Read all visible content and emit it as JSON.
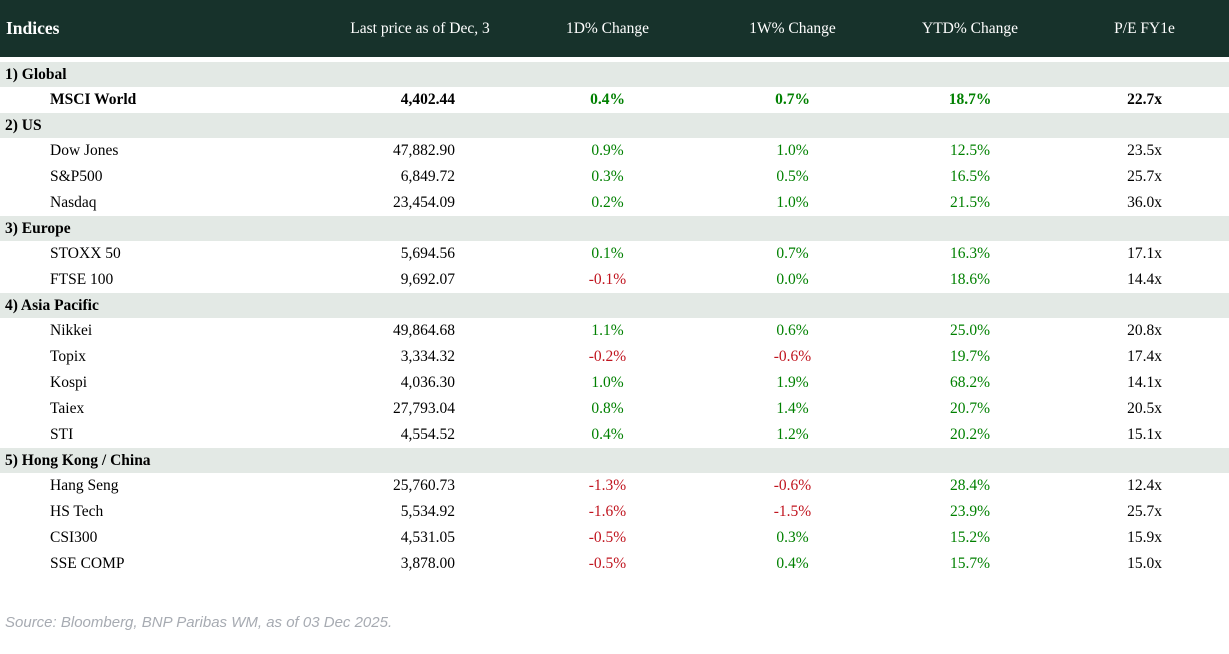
{
  "colors": {
    "header_bg": "#17322b",
    "header_text": "#ffffff",
    "section_bg": "#e3e9e5",
    "positive": "#008000",
    "negative": "#c0141e",
    "text": "#000000",
    "source_text": "#a7abb2"
  },
  "chart_data": {
    "type": "table",
    "title": "Indices",
    "columns": [
      "Indices",
      "Last price as of Dec, 3",
      "1D% Change",
      "1W% Change",
      "YTD% Change",
      "P/E FY1e"
    ],
    "sections": [
      {
        "label": "1) Global",
        "rows": [
          {
            "name": "MSCI World",
            "last_price": "4,402.44",
            "chg_1d": "0.4%",
            "chg_1w": "0.7%",
            "chg_ytd": "18.7%",
            "pe_fy1e": "22.7x",
            "bold": true
          }
        ]
      },
      {
        "label": "2) US",
        "rows": [
          {
            "name": "Dow Jones",
            "last_price": "47,882.90",
            "chg_1d": "0.9%",
            "chg_1w": "1.0%",
            "chg_ytd": "12.5%",
            "pe_fy1e": "23.5x"
          },
          {
            "name": "S&P500",
            "last_price": "6,849.72",
            "chg_1d": "0.3%",
            "chg_1w": "0.5%",
            "chg_ytd": "16.5%",
            "pe_fy1e": "25.7x"
          },
          {
            "name": "Nasdaq",
            "last_price": "23,454.09",
            "chg_1d": "0.2%",
            "chg_1w": "1.0%",
            "chg_ytd": "21.5%",
            "pe_fy1e": "36.0x"
          }
        ]
      },
      {
        "label": "3) Europe",
        "rows": [
          {
            "name": "STOXX 50",
            "last_price": "5,694.56",
            "chg_1d": "0.1%",
            "chg_1w": "0.7%",
            "chg_ytd": "16.3%",
            "pe_fy1e": "17.1x"
          },
          {
            "name": "FTSE 100",
            "last_price": "9,692.07",
            "chg_1d": "-0.1%",
            "chg_1w": "0.0%",
            "chg_ytd": "18.6%",
            "pe_fy1e": "14.4x"
          }
        ]
      },
      {
        "label": "4) Asia Pacific",
        "rows": [
          {
            "name": "Nikkei",
            "last_price": "49,864.68",
            "chg_1d": "1.1%",
            "chg_1w": "0.6%",
            "chg_ytd": "25.0%",
            "pe_fy1e": "20.8x"
          },
          {
            "name": "Topix",
            "last_price": "3,334.32",
            "chg_1d": "-0.2%",
            "chg_1w": "-0.6%",
            "chg_ytd": "19.7%",
            "pe_fy1e": "17.4x"
          },
          {
            "name": "Kospi",
            "last_price": "4,036.30",
            "chg_1d": "1.0%",
            "chg_1w": "1.9%",
            "chg_ytd": "68.2%",
            "pe_fy1e": "14.1x"
          },
          {
            "name": "Taiex",
            "last_price": "27,793.04",
            "chg_1d": "0.8%",
            "chg_1w": "1.4%",
            "chg_ytd": "20.7%",
            "pe_fy1e": "20.5x"
          },
          {
            "name": "STI",
            "last_price": "4,554.52",
            "chg_1d": "0.4%",
            "chg_1w": "1.2%",
            "chg_ytd": "20.2%",
            "pe_fy1e": "15.1x"
          }
        ]
      },
      {
        "label": "5) Hong Kong / China",
        "rows": [
          {
            "name": "Hang Seng",
            "last_price": "25,760.73",
            "chg_1d": "-1.3%",
            "chg_1w": "-0.6%",
            "chg_ytd": "28.4%",
            "pe_fy1e": "12.4x"
          },
          {
            "name": "HS Tech",
            "last_price": "5,534.92",
            "chg_1d": "-1.6%",
            "chg_1w": "-1.5%",
            "chg_ytd": "23.9%",
            "pe_fy1e": "25.7x"
          },
          {
            "name": "CSI300",
            "last_price": "4,531.05",
            "chg_1d": "-0.5%",
            "chg_1w": "0.3%",
            "chg_ytd": "15.2%",
            "pe_fy1e": "15.9x"
          },
          {
            "name": "SSE COMP",
            "last_price": "3,878.00",
            "chg_1d": "-0.5%",
            "chg_1w": "0.4%",
            "chg_ytd": "15.7%",
            "pe_fy1e": "15.0x"
          }
        ]
      }
    ],
    "source_note": "Source: Bloomberg, BNP Paribas WM, as of 03 Dec 2025."
  }
}
